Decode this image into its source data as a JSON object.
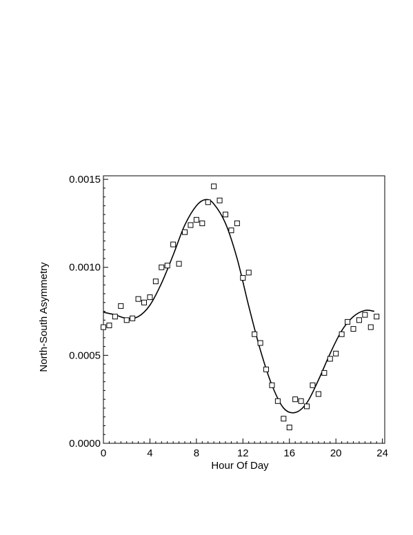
{
  "chart_data": {
    "type": "scatter",
    "title": "",
    "xlabel": "Hour Of Day",
    "ylabel": "North-South Asymmetry",
    "xlim": [
      0,
      24.2
    ],
    "ylim": [
      0,
      0.00152
    ],
    "x_ticks": [
      0,
      4,
      8,
      12,
      16,
      20,
      24
    ],
    "x_tick_labels": [
      "0",
      "4",
      "8",
      "12",
      "16",
      "20",
      "24"
    ],
    "y_ticks": [
      0,
      0.0005,
      0.001,
      0.0015
    ],
    "y_tick_labels": [
      "0.0000",
      "0.0005",
      "0.0010",
      "0.0015"
    ],
    "grid": false,
    "series": [
      {
        "marker": "open-square",
        "color": "#000000",
        "x": [
          0.0,
          0.5,
          1.0,
          1.5,
          2.0,
          2.5,
          3.0,
          3.5,
          4.0,
          4.5,
          5.0,
          5.5,
          6.0,
          6.5,
          7.0,
          7.5,
          8.0,
          8.5,
          9.0,
          9.5,
          10.0,
          10.5,
          11.0,
          11.5,
          12.0,
          12.5,
          13.0,
          13.5,
          14.0,
          14.5,
          15.0,
          15.5,
          16.0,
          16.5,
          17.0,
          17.5,
          18.0,
          18.5,
          19.0,
          19.5,
          20.0,
          20.5,
          21.0,
          21.5,
          22.0,
          22.5,
          23.0,
          23.5
        ],
        "y": [
          0.00066,
          0.00067,
          0.00072,
          0.00078,
          0.0007,
          0.00071,
          0.00082,
          0.0008,
          0.00083,
          0.00092,
          0.001,
          0.00101,
          0.00113,
          0.00102,
          0.0012,
          0.00124,
          0.00127,
          0.00125,
          0.00137,
          0.00146,
          0.00138,
          0.0013,
          0.00121,
          0.00125,
          0.00094,
          0.00097,
          0.00062,
          0.00057,
          0.00042,
          0.00033,
          0.00024,
          0.00014,
          9e-05,
          0.00025,
          0.00024,
          0.00021,
          0.00033,
          0.00028,
          0.0004,
          0.00048,
          0.00051,
          0.00062,
          0.00069,
          0.00065,
          0.0007,
          0.00073,
          0.00066,
          0.00072
        ]
      },
      {
        "line": "fit-curve",
        "color": "#000000",
        "x": [
          0.0,
          1.0,
          2.0,
          3.0,
          4.0,
          5.0,
          6.0,
          7.0,
          8.0,
          8.8,
          9.5,
          10.5,
          11.5,
          12.5,
          13.5,
          14.5,
          15.5,
          16.5,
          17.5,
          18.5,
          19.5,
          20.5,
          21.5,
          22.5,
          23.3
        ],
        "y": [
          0.000745,
          0.00073,
          0.00071,
          0.00072,
          0.000785,
          0.00091,
          0.00107,
          0.00124,
          0.00135,
          0.001385,
          0.00136,
          0.00125,
          0.00105,
          0.00078,
          0.00053,
          0.00033,
          0.0002,
          0.000175,
          0.00023,
          0.00036,
          0.00051,
          0.00064,
          0.00072,
          0.000755,
          0.00075
        ]
      }
    ]
  }
}
